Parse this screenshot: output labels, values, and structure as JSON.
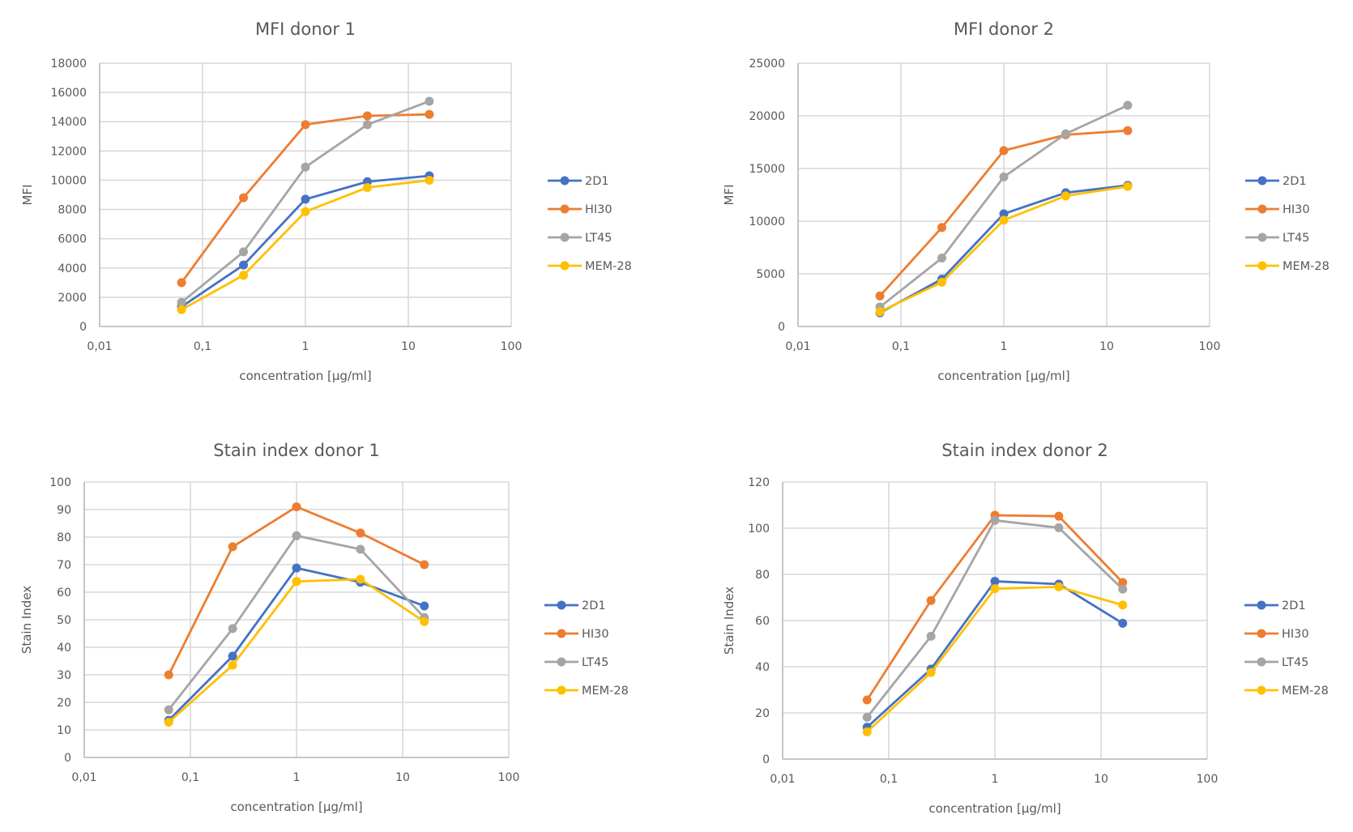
{
  "series_colors": {
    "2D1": "#4472c4",
    "HI30": "#ed7d31",
    "LT45": "#a5a5a5",
    "MEM-28": "#ffc000"
  },
  "chart_data": [
    {
      "id": "mfi-donor-1",
      "type": "line",
      "title": "MFI donor 1",
      "xlabel": "concentration [µg/ml]",
      "ylabel": "MFI",
      "xscale": "log",
      "xlim": [
        0.01,
        100
      ],
      "ylim": [
        0,
        18000
      ],
      "x_ticks": [
        0.01,
        0.1,
        1,
        10,
        100
      ],
      "x_tick_labels": [
        "0,01",
        "0,1",
        "1",
        "10",
        "100"
      ],
      "y_ticks": [
        0,
        2000,
        4000,
        6000,
        8000,
        10000,
        12000,
        14000,
        16000,
        18000
      ],
      "y_tick_labels": [
        "0",
        "2000",
        "4000",
        "6000",
        "8000",
        "10000",
        "12000",
        "14000",
        "16000",
        "18000"
      ],
      "grid": true,
      "legend_position": "right",
      "x": [
        0.0625,
        0.25,
        1,
        4,
        16
      ],
      "series": [
        {
          "name": "2D1",
          "values": [
            1350,
            4200,
            8700,
            9900,
            10300
          ]
        },
        {
          "name": "HI30",
          "values": [
            3000,
            8800,
            13800,
            14400,
            14500
          ]
        },
        {
          "name": "LT45",
          "values": [
            1650,
            5100,
            10900,
            13800,
            15400
          ]
        },
        {
          "name": "MEM-28",
          "values": [
            1150,
            3500,
            7850,
            9500,
            10000
          ]
        }
      ]
    },
    {
      "id": "mfi-donor-2",
      "type": "line",
      "title": "MFI donor 2",
      "xlabel": "concentration [µg/ml]",
      "ylabel": "MFI",
      "xscale": "log",
      "xlim": [
        0.01,
        100
      ],
      "ylim": [
        0,
        25000
      ],
      "x_ticks": [
        0.01,
        0.1,
        1,
        10,
        100
      ],
      "x_tick_labels": [
        "0,01",
        "0,1",
        "1",
        "10",
        "100"
      ],
      "y_ticks": [
        0,
        5000,
        10000,
        15000,
        20000,
        25000
      ],
      "y_tick_labels": [
        "0",
        "5000",
        "10000",
        "15000",
        "20000",
        "25000"
      ],
      "grid": true,
      "legend_position": "right",
      "x": [
        0.0625,
        0.25,
        1,
        4,
        16
      ],
      "series": [
        {
          "name": "2D1",
          "values": [
            1300,
            4500,
            10700,
            12700,
            13400
          ]
        },
        {
          "name": "HI30",
          "values": [
            2900,
            9400,
            16700,
            18200,
            18600
          ]
        },
        {
          "name": "LT45",
          "values": [
            1850,
            6500,
            14200,
            18300,
            21000
          ]
        },
        {
          "name": "MEM-28",
          "values": [
            1400,
            4200,
            10100,
            12400,
            13300
          ]
        }
      ]
    },
    {
      "id": "stain-index-donor-1",
      "type": "line",
      "title": "Stain index donor 1",
      "xlabel": "concentration [µg/ml]",
      "ylabel": "Stain Index",
      "xscale": "log",
      "xlim": [
        0.01,
        100
      ],
      "ylim": [
        0,
        100
      ],
      "x_ticks": [
        0.01,
        0.1,
        1,
        10,
        100
      ],
      "x_tick_labels": [
        "0,01",
        "0,1",
        "1",
        "10",
        "100"
      ],
      "y_ticks": [
        0,
        10,
        20,
        30,
        40,
        50,
        60,
        70,
        80,
        90,
        100
      ],
      "y_tick_labels": [
        "0",
        "10",
        "20",
        "30",
        "40",
        "50",
        "60",
        "70",
        "80",
        "90",
        "100"
      ],
      "grid": true,
      "legend_position": "right",
      "x": [
        0.0625,
        0.25,
        1,
        4,
        16
      ],
      "series": [
        {
          "name": "2D1",
          "values": [
            13.5,
            36.8,
            68.8,
            63.6,
            55.0
          ]
        },
        {
          "name": "HI30",
          "values": [
            30.0,
            76.5,
            91.0,
            81.5,
            70.0
          ]
        },
        {
          "name": "LT45",
          "values": [
            17.3,
            46.8,
            80.5,
            75.6,
            50.8
          ]
        },
        {
          "name": "MEM-28",
          "values": [
            12.8,
            33.5,
            63.9,
            64.7,
            49.3
          ]
        }
      ]
    },
    {
      "id": "stain-index-donor-2",
      "type": "line",
      "title": "Stain index donor 2",
      "xlabel": "concentration [µg/ml]",
      "ylabel": "Stain Index",
      "xscale": "log",
      "xlim": [
        0.01,
        100
      ],
      "ylim": [
        0,
        120
      ],
      "x_ticks": [
        0.01,
        0.1,
        1,
        10,
        100
      ],
      "x_tick_labels": [
        "0,01",
        "0,1",
        "1",
        "10",
        "100"
      ],
      "y_ticks": [
        0,
        20,
        40,
        60,
        80,
        100,
        120
      ],
      "y_tick_labels": [
        "0",
        "20",
        "40",
        "60",
        "80",
        "100",
        "120"
      ],
      "grid": true,
      "legend_position": "right",
      "x": [
        0.0625,
        0.25,
        1,
        4,
        16
      ],
      "series": [
        {
          "name": "2D1",
          "values": [
            13.8,
            39.0,
            77.0,
            75.8,
            58.8
          ]
        },
        {
          "name": "HI30",
          "values": [
            25.6,
            68.7,
            105.6,
            105.2,
            76.5
          ]
        },
        {
          "name": "LT45",
          "values": [
            18.1,
            53.2,
            103.4,
            100.2,
            73.6
          ]
        },
        {
          "name": "MEM-28",
          "values": [
            11.8,
            37.5,
            73.8,
            74.6,
            66.7
          ]
        }
      ]
    }
  ]
}
